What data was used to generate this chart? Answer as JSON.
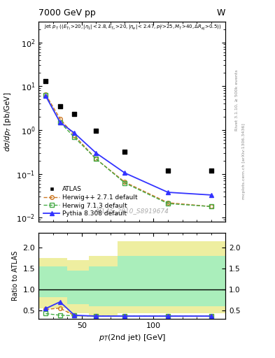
{
  "title": "7000 GeV pp",
  "title_right": "W",
  "watermark": "ATLAS_2010_S8919674",
  "xlabel": "p_{T}(2nd jet) [GeV]",
  "ylabel": "d#sigma/dp_{T} [pb/GeV]",
  "ylabel_ratio": "Ratio to ATLAS",
  "xlim": [
    20,
    150
  ],
  "ylim_main_lo": 0.008,
  "ylim_main_hi": 300,
  "ylim_ratio_lo": 0.3,
  "ylim_ratio_hi": 2.35,
  "atlas_x": [
    25,
    35,
    45,
    60,
    80,
    110,
    140
  ],
  "atlas_y": [
    13.0,
    3.5,
    2.3,
    0.95,
    0.32,
    0.12,
    0.12
  ],
  "herwigpp_x": [
    25,
    35,
    45,
    60,
    80,
    110,
    140
  ],
  "herwigpp_y": [
    6.5,
    1.8,
    0.75,
    0.22,
    0.065,
    0.022,
    0.018
  ],
  "herwig713_x": [
    25,
    35,
    45,
    60,
    80,
    110,
    140
  ],
  "herwig713_y": [
    6.2,
    1.5,
    0.68,
    0.22,
    0.062,
    0.021,
    0.018
  ],
  "pythia_x": [
    25,
    35,
    45,
    60,
    80,
    110,
    140
  ],
  "pythia_y": [
    6.0,
    1.5,
    0.85,
    0.3,
    0.105,
    0.038,
    0.033
  ],
  "herwigpp_ratio": [
    0.52,
    0.55,
    0.37,
    0.36,
    0.36,
    0.36,
    0.36
  ],
  "herwig713_ratio": [
    0.42,
    0.38,
    0.37,
    0.36,
    0.36,
    0.36,
    0.36
  ],
  "pythia_ratio": [
    0.54,
    0.7,
    0.38,
    0.36,
    0.36,
    0.36,
    0.36
  ],
  "band_edges_x": [
    20,
    30,
    40,
    55,
    75,
    130,
    150
  ],
  "green_band_lo": [
    0.82,
    0.82,
    0.65,
    0.6,
    0.6,
    0.6
  ],
  "green_band_hi": [
    1.55,
    1.55,
    1.45,
    1.55,
    1.8,
    1.8
  ],
  "yellow_band_lo": [
    0.55,
    0.55,
    0.42,
    0.38,
    0.42,
    0.42
  ],
  "yellow_band_hi": [
    1.75,
    1.75,
    1.7,
    1.8,
    2.15,
    2.15
  ],
  "herwigpp_color": "#cc7722",
  "herwig713_color": "#44aa44",
  "pythia_color": "#3333ff",
  "atlas_color": "#000000",
  "green_band_color": "#aaeebb",
  "yellow_band_color": "#eeeea0"
}
